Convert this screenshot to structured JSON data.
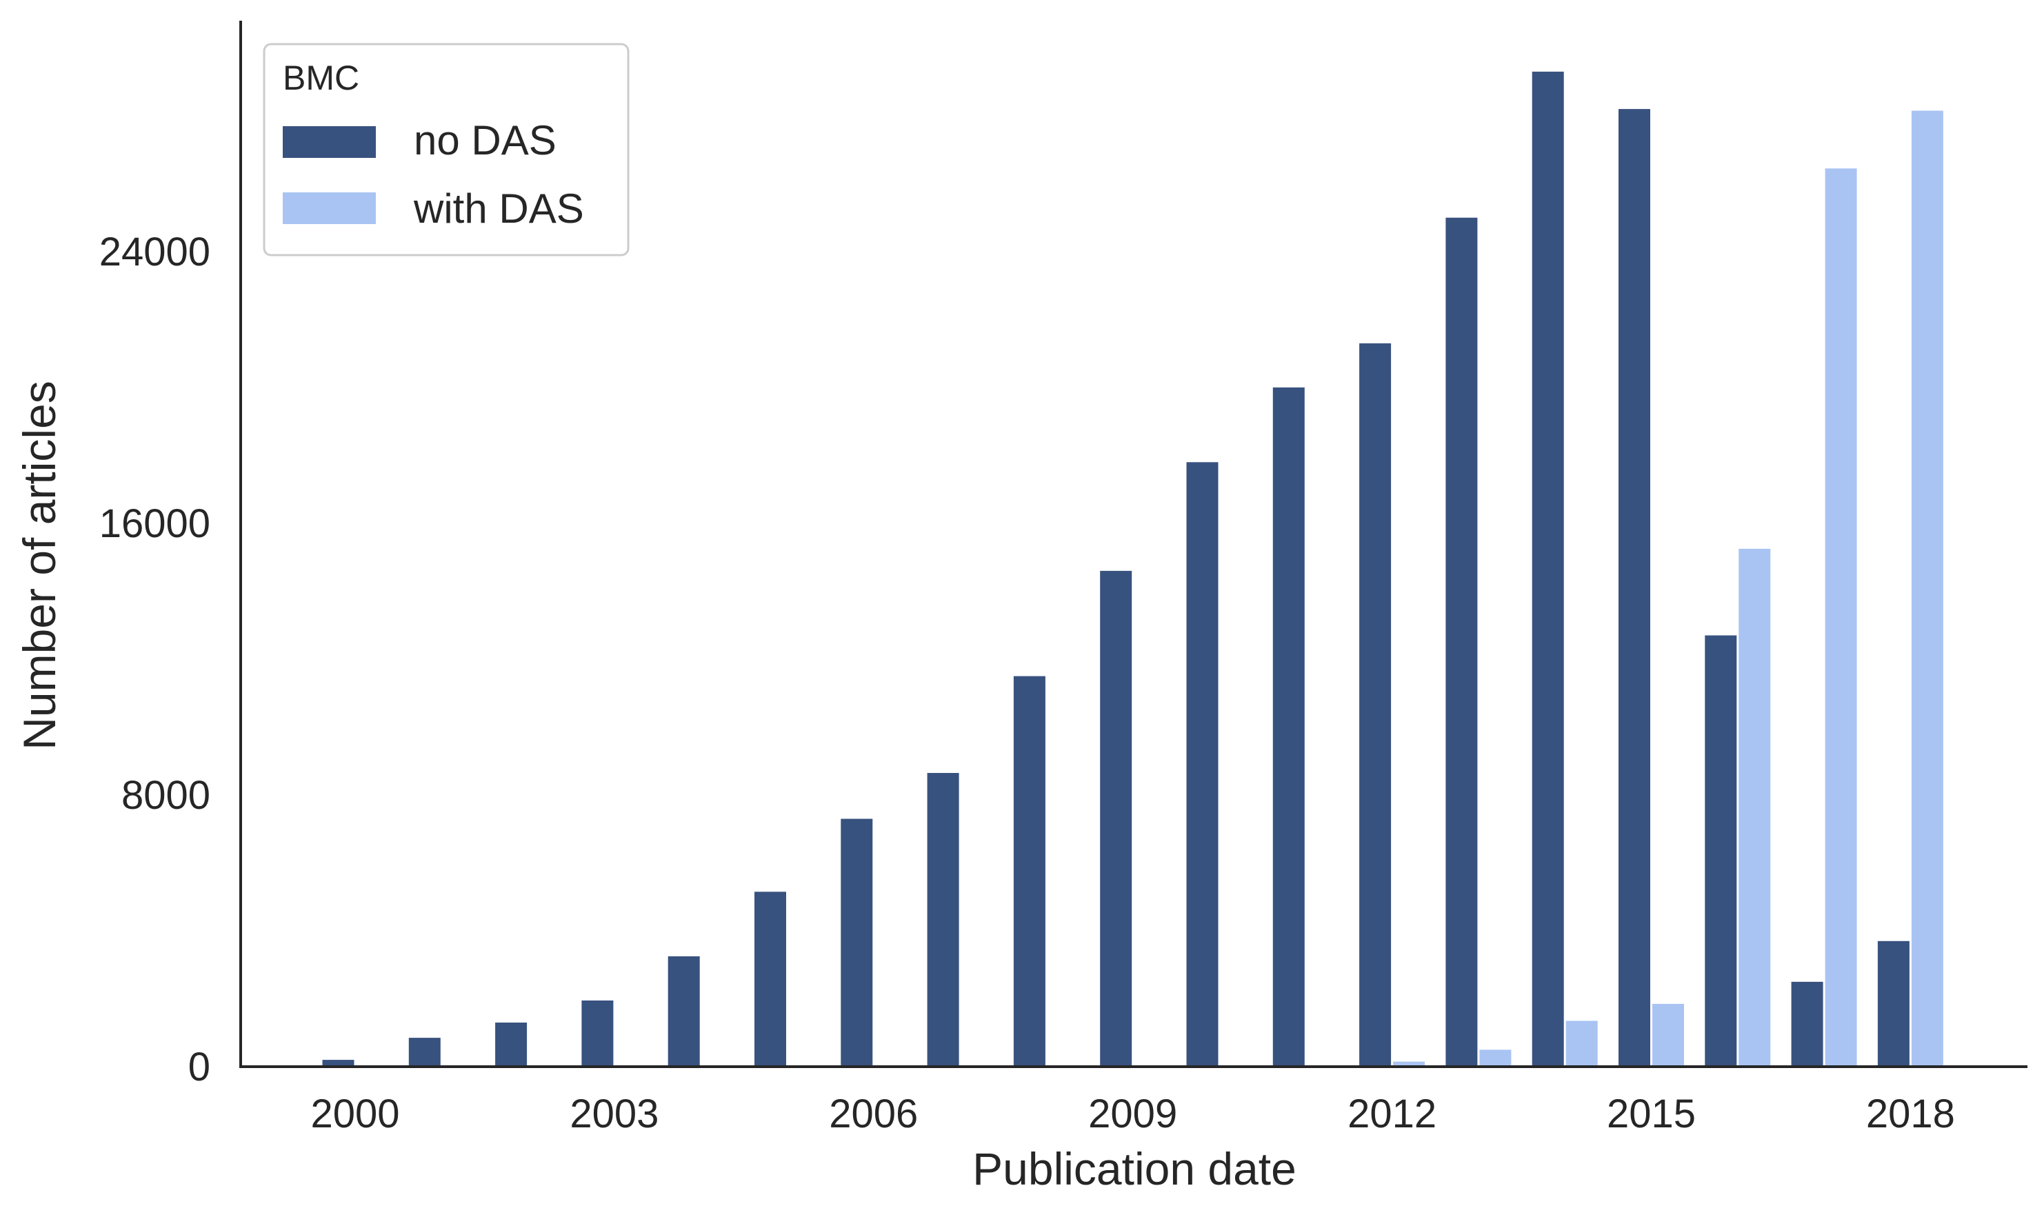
{
  "chart_data": {
    "type": "bar",
    "title": "",
    "xlabel": "Publication date",
    "ylabel": "Number of articles",
    "categories": [
      "2000",
      "2001",
      "2002",
      "2003",
      "2004",
      "2005",
      "2006",
      "2007",
      "2008",
      "2009",
      "2010",
      "2011",
      "2012",
      "2013",
      "2014",
      "2015",
      "2016",
      "2017",
      "2018"
    ],
    "xticks": [
      "2000",
      "2003",
      "2006",
      "2009",
      "2012",
      "2015",
      "2018"
    ],
    "yticks": [
      0,
      8000,
      16000,
      24000
    ],
    "ylim": [
      0,
      30800
    ],
    "grid": false,
    "legend": {
      "title": "BMC",
      "placement": "top-left"
    },
    "series": [
      {
        "name": "no DAS",
        "color": "#38527f",
        "values": [
          200,
          850,
          1300,
          1950,
          3250,
          5150,
          7300,
          8650,
          11500,
          14600,
          17800,
          20000,
          21300,
          25000,
          29300,
          28200,
          12700,
          2500,
          3700
        ]
      },
      {
        "name": "with DAS",
        "color": "#a9c4f3",
        "values": [
          0,
          0,
          0,
          0,
          0,
          0,
          0,
          0,
          0,
          0,
          0,
          0,
          150,
          500,
          1350,
          1850,
          15250,
          26450,
          28150
        ]
      }
    ]
  }
}
